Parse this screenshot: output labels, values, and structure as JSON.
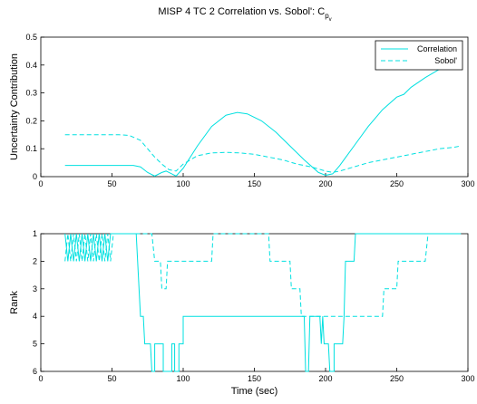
{
  "chart_data": [
    {
      "type": "line",
      "title": "MISP 4 TC 2 Correlation vs. Sobol': C",
      "title_sub": "p",
      "title_subsub": "v",
      "ylabel": "Uncertainty Contribution",
      "xlim": [
        0,
        300
      ],
      "xticks": [
        0,
        50,
        100,
        150,
        200,
        250,
        300
      ],
      "ylim": [
        0,
        0.5
      ],
      "yticks": [
        0,
        0.1,
        0.2,
        0.3,
        0.4,
        0.5
      ],
      "legend": "northeast",
      "series": [
        {
          "name": "Correlation",
          "color": "#00e0e0",
          "dash": false,
          "x": [
            17,
            25,
            35,
            45,
            55,
            65,
            70,
            75,
            80,
            85,
            88,
            92,
            95,
            100,
            110,
            120,
            130,
            138,
            145,
            155,
            165,
            175,
            185,
            195,
            200,
            205,
            210,
            220,
            230,
            240,
            250,
            255,
            260,
            270,
            280
          ],
          "values": [
            0.04,
            0.04,
            0.04,
            0.04,
            0.04,
            0.04,
            0.035,
            0.015,
            0.002,
            0.015,
            0.02,
            0.01,
            0.002,
            0.03,
            0.11,
            0.18,
            0.22,
            0.23,
            0.225,
            0.2,
            0.16,
            0.11,
            0.06,
            0.015,
            0.005,
            0.01,
            0.04,
            0.11,
            0.18,
            0.24,
            0.285,
            0.295,
            0.32,
            0.355,
            0.385
          ]
        },
        {
          "name": "Sobol'",
          "color": "#00e0e0",
          "dash": true,
          "x": [
            17,
            25,
            35,
            45,
            55,
            62,
            70,
            75,
            80,
            85,
            90,
            95,
            100,
            110,
            120,
            130,
            140,
            150,
            160,
            170,
            180,
            190,
            200,
            205,
            210,
            220,
            230,
            240,
            250,
            260,
            270,
            280,
            290,
            295
          ],
          "values": [
            0.15,
            0.15,
            0.15,
            0.15,
            0.15,
            0.148,
            0.13,
            0.1,
            0.07,
            0.045,
            0.025,
            0.02,
            0.045,
            0.075,
            0.085,
            0.087,
            0.085,
            0.08,
            0.07,
            0.06,
            0.045,
            0.035,
            0.02,
            0.015,
            0.02,
            0.035,
            0.05,
            0.06,
            0.07,
            0.08,
            0.09,
            0.1,
            0.105,
            0.11
          ]
        }
      ]
    },
    {
      "type": "line",
      "xlabel": "Time (sec)",
      "ylabel": "Rank",
      "xlim": [
        0,
        300
      ],
      "xticks": [
        0,
        50,
        100,
        150,
        200,
        250,
        300
      ],
      "ylim": [
        6,
        1
      ],
      "yticks": [
        1,
        2,
        3,
        4,
        5,
        6
      ],
      "series": [
        {
          "name": "Correlation",
          "color": "#00e0e0",
          "dash": false,
          "x": [
            17,
            19,
            21,
            23,
            25,
            27,
            29,
            31,
            33,
            35,
            37,
            39,
            41,
            43,
            45,
            47,
            49,
            51,
            67,
            70,
            72,
            73,
            77,
            78,
            80,
            80,
            86,
            86,
            92,
            92,
            94,
            94,
            97,
            97,
            100,
            100,
            185,
            186,
            188,
            189,
            196,
            197,
            198,
            199,
            202,
            203,
            206,
            206,
            212,
            213,
            214,
            220,
            221,
            295
          ],
          "values": [
            1,
            2,
            1,
            2,
            1,
            2,
            1,
            2,
            1,
            2,
            1,
            2,
            1,
            2,
            1,
            2,
            1,
            1,
            1,
            4,
            4,
            5,
            5,
            6,
            6,
            5,
            5,
            6,
            6,
            5,
            5,
            6,
            6,
            5,
            5,
            4,
            4,
            6,
            6,
            4,
            4,
            5,
            4,
            5,
            5,
            6,
            6,
            5,
            5,
            4,
            2,
            2,
            1,
            1
          ]
        },
        {
          "name": "Sobol'",
          "color": "#00e0e0",
          "dash": true,
          "x": [
            17,
            19,
            21,
            23,
            25,
            27,
            29,
            31,
            33,
            35,
            37,
            39,
            41,
            43,
            45,
            47,
            49,
            51,
            78,
            80,
            84,
            85,
            88,
            89,
            120,
            121,
            160,
            161,
            175,
            176,
            182,
            183,
            240,
            241,
            250,
            251,
            270,
            272,
            295
          ],
          "values": [
            2,
            1,
            2,
            1,
            2,
            1,
            2,
            1,
            2,
            1,
            2,
            1,
            2,
            1,
            2,
            1,
            2,
            1,
            1,
            2,
            2,
            3,
            3,
            2,
            2,
            1,
            1,
            2,
            2,
            3,
            3,
            4,
            4,
            3,
            3,
            2,
            2,
            1,
            1
          ]
        }
      ]
    }
  ]
}
